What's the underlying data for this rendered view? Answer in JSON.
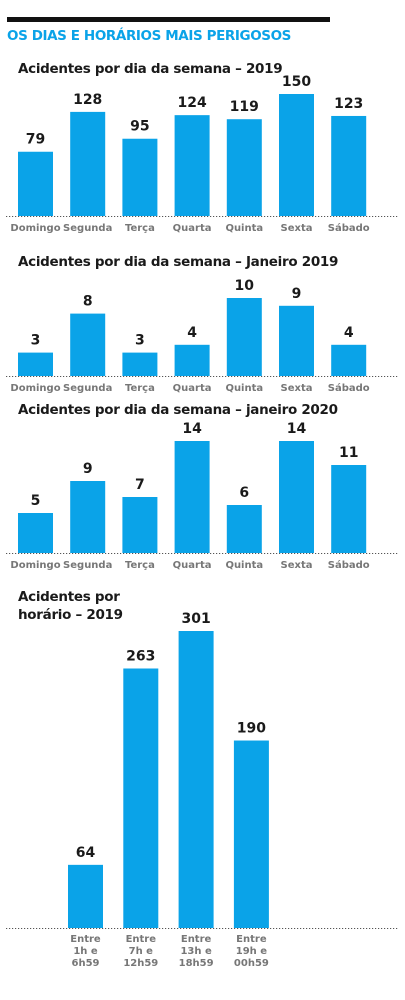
{
  "header": {
    "title": "OS DIAS E HORÁRIOS MAIS PERIGOSOS"
  },
  "colors": {
    "bar": "#0aa3e8",
    "title_accent": "#0aa3e8",
    "baseline": "#555555",
    "label": "#777777"
  },
  "chart_data": [
    {
      "type": "bar",
      "title": "Acidentes por dia da semana – 2019",
      "categories": [
        "Domingo",
        "Segunda",
        "Terça",
        "Quarta",
        "Quinta",
        "Sexta",
        "Sábado"
      ],
      "values": [
        79,
        128,
        95,
        124,
        119,
        150,
        123
      ],
      "ylim": [
        0,
        150
      ],
      "grid": false
    },
    {
      "type": "bar",
      "title": "Acidentes por dia da semana – Janeiro 2019",
      "categories": [
        "Domingo",
        "Segunda",
        "Terça",
        "Quarta",
        "Quinta",
        "Sexta",
        "Sábado"
      ],
      "values": [
        3,
        8,
        3,
        4,
        10,
        9,
        4
      ],
      "ylim": [
        0,
        10
      ],
      "grid": false
    },
    {
      "type": "bar",
      "title": "Acidentes por dia da semana –  janeiro 2020",
      "categories": [
        "Domingo",
        "Segunda",
        "Terça",
        "Quarta",
        "Quinta",
        "Sexta",
        "Sábado"
      ],
      "values": [
        5,
        9,
        7,
        14,
        6,
        14,
        11
      ],
      "ylim": [
        0,
        14
      ],
      "grid": false
    },
    {
      "type": "bar",
      "title": [
        "Acidentes por",
        "horário – 2019"
      ],
      "categories": [
        [
          "Entre",
          "1h e",
          "6h59"
        ],
        [
          "Entre",
          "7h e",
          "12h59"
        ],
        [
          "Entre",
          "13h e",
          "18h59"
        ],
        [
          "Entre",
          "19h e",
          "00h59"
        ]
      ],
      "values": [
        64,
        263,
        301,
        190
      ],
      "ylim": [
        0,
        301
      ],
      "grid": false
    }
  ]
}
